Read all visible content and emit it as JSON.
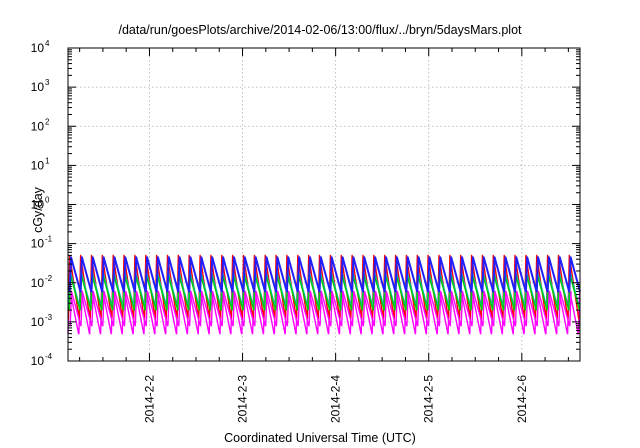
{
  "chart_data": {
    "type": "line",
    "title": "/data/run/goesPlots/archive/2014-02-06/13:00/flux/../bryn/5daysMars.plot",
    "xlabel": "Coordinated Universal Time (UTC)",
    "ylabel": "cGy/day",
    "y_scale": "log",
    "ylim": [
      0.0001,
      10000
    ],
    "y_ticks": [
      {
        "base": "10",
        "exp": "4"
      },
      {
        "base": "10",
        "exp": "3"
      },
      {
        "base": "10",
        "exp": "2"
      },
      {
        "base": "10",
        "exp": "1"
      },
      {
        "base": "10",
        "exp": "0"
      },
      {
        "base": "10",
        "exp": "-1"
      },
      {
        "base": "10",
        "exp": "-2"
      },
      {
        "base": "10",
        "exp": "-3"
      },
      {
        "base": "10",
        "exp": "-4"
      }
    ],
    "x_range_days": [
      "2014-02-01 03:00",
      "2014-02-06 15:00"
    ],
    "x_ticks": [
      "2014-2-2",
      "2014-2-3",
      "2014-2-4",
      "2014-2-5",
      "2014-2-6"
    ],
    "grid": true,
    "sawtooth_period_hours": 2.8,
    "series": [
      {
        "color": "#ff00ff",
        "peak": 0.008,
        "floor": 0.0005
      },
      {
        "color": "#ff0000",
        "peak": 0.05,
        "floor": 0.0012
      },
      {
        "color": "#00bbbb",
        "peak": 0.02,
        "floor": 0.0025
      },
      {
        "color": "#00cc00",
        "peak": 0.015,
        "floor": 0.002
      },
      {
        "color": "#2020ff",
        "peak": 0.045,
        "floor": 0.006
      },
      {
        "color": "#ff00ff",
        "peak": 0.006,
        "floor": 0.0008
      }
    ]
  }
}
